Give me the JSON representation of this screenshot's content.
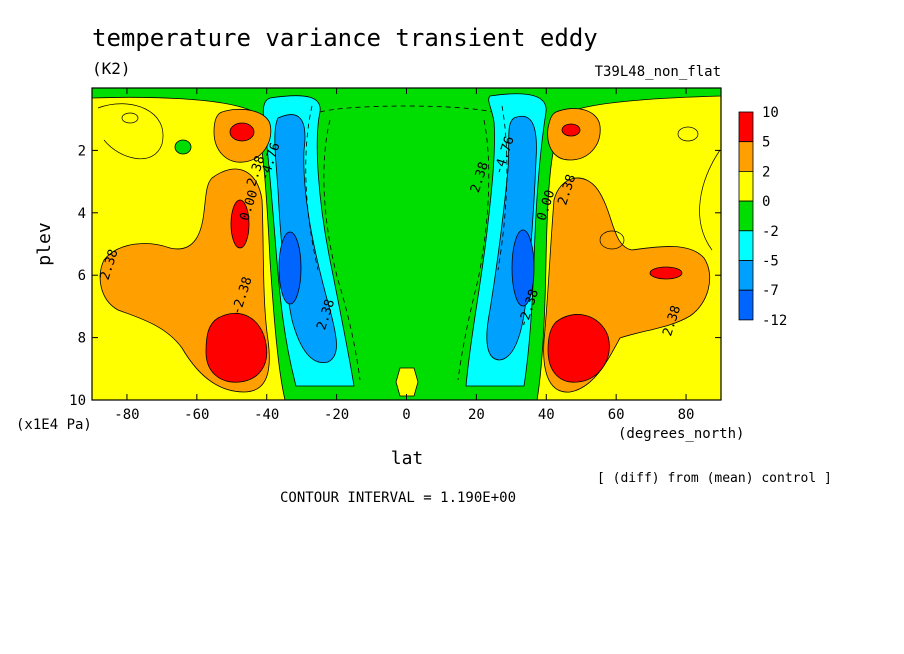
{
  "chart_data": {
    "type": "heatmap",
    "title": "temperature variance transient eddy",
    "units": "(K2)",
    "run_label": "T39L48_non_flat",
    "xlabel": "lat",
    "x_unit_label": "(degrees_north)",
    "ylabel": "plev",
    "y_unit_label": "(x1E4 Pa)",
    "xlim": [
      -90,
      90
    ],
    "ylim": [
      10,
      0
    ],
    "x_ticks": [
      -80,
      -60,
      -40,
      -20,
      0,
      20,
      40,
      60,
      80
    ],
    "y_ticks": [
      2,
      4,
      6,
      8,
      10
    ],
    "contour_interval_text": "CONTOUR INTERVAL = 1.190E+00",
    "diff_note": "[ (diff) from (mean) control ]",
    "legend": {
      "placement": "right",
      "levels": [
        "10",
        "5",
        "2",
        "0",
        "-2",
        "-5",
        "-7",
        "-12"
      ],
      "colors": [
        "#ff0000",
        "#ffa000",
        "#ffff00",
        "#00dd00",
        "#00ffff",
        "#00a0ff",
        "#0064ff"
      ]
    },
    "contour_labels": [
      {
        "text": "2.38",
        "lat": -84,
        "plev": 5.7
      },
      {
        "text": "2.38",
        "lat": -42,
        "plev": 2.7
      },
      {
        "text": "0.00",
        "lat": -44,
        "plev": 3.8
      },
      {
        "text": "-4.76",
        "lat": -38,
        "plev": 2.4
      },
      {
        "text": "-2.38",
        "lat": -46,
        "plev": 6.7
      },
      {
        "text": "2.38",
        "lat": -22,
        "plev": 7.3
      },
      {
        "text": "2.38",
        "lat": 22,
        "plev": 2.9
      },
      {
        "text": "-4.76",
        "lat": 29,
        "plev": 2.2
      },
      {
        "text": "0.00",
        "lat": 41,
        "plev": 3.8
      },
      {
        "text": "2.38",
        "lat": 47,
        "plev": 3.3
      },
      {
        "text": "-2.38",
        "lat": 36,
        "plev": 7.1
      },
      {
        "text": "2.38",
        "lat": 77,
        "plev": 7.5
      }
    ],
    "regions": {
      "red_max": [
        {
          "lat": -45,
          "plev": 8.2
        },
        {
          "lat": 45,
          "plev": 8.2
        },
        {
          "lat": -47,
          "plev": 4.4
        },
        {
          "lat": -47,
          "plev": 1.3
        },
        {
          "lat": 46,
          "plev": 1.3
        },
        {
          "lat": 72,
          "plev": 6.0
        }
      ],
      "blue_min": [
        {
          "lat": -33,
          "plev": 5.8
        },
        {
          "lat": 33,
          "plev": 5.8
        }
      ],
      "green_center": {
        "lat": 0,
        "plev": 5.0
      }
    }
  }
}
